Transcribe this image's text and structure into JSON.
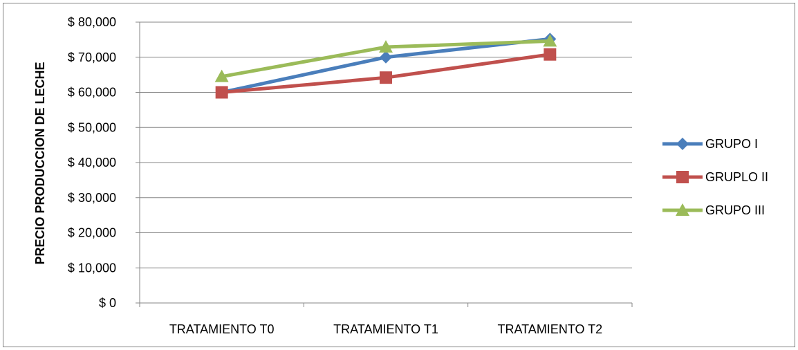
{
  "chart_data": {
    "type": "line",
    "title": "",
    "xlabel": "",
    "ylabel": "PRECIO PRODUCCION DE LECHE",
    "categories": [
      "TRATAMIENTO T0",
      "TRATAMIENTO T1",
      "TRATAMIENTO T2"
    ],
    "ylim": [
      0,
      80000
    ],
    "yticks": [
      0,
      10000,
      20000,
      30000,
      40000,
      50000,
      60000,
      70000,
      80000
    ],
    "ytick_labels": [
      "$ 0",
      "$ 10,000",
      "$ 20,000",
      "$ 30,000",
      "$ 40,000",
      "$ 50,000",
      "$ 60,000",
      "$ 70,000",
      "$ 80,000"
    ],
    "grid": true,
    "legend_position": "right",
    "series": [
      {
        "name": "GRUPO I",
        "values": [
          60000,
          70000,
          75200
        ],
        "color": "#4a7ebb",
        "marker": "diamond"
      },
      {
        "name": "GRUPLO II",
        "values": [
          60000,
          64200,
          70800
        ],
        "color": "#c0504d",
        "marker": "square"
      },
      {
        "name": "GRUPO III",
        "values": [
          64500,
          72900,
          74600
        ],
        "color": "#9bbb59",
        "marker": "triangle"
      }
    ]
  }
}
